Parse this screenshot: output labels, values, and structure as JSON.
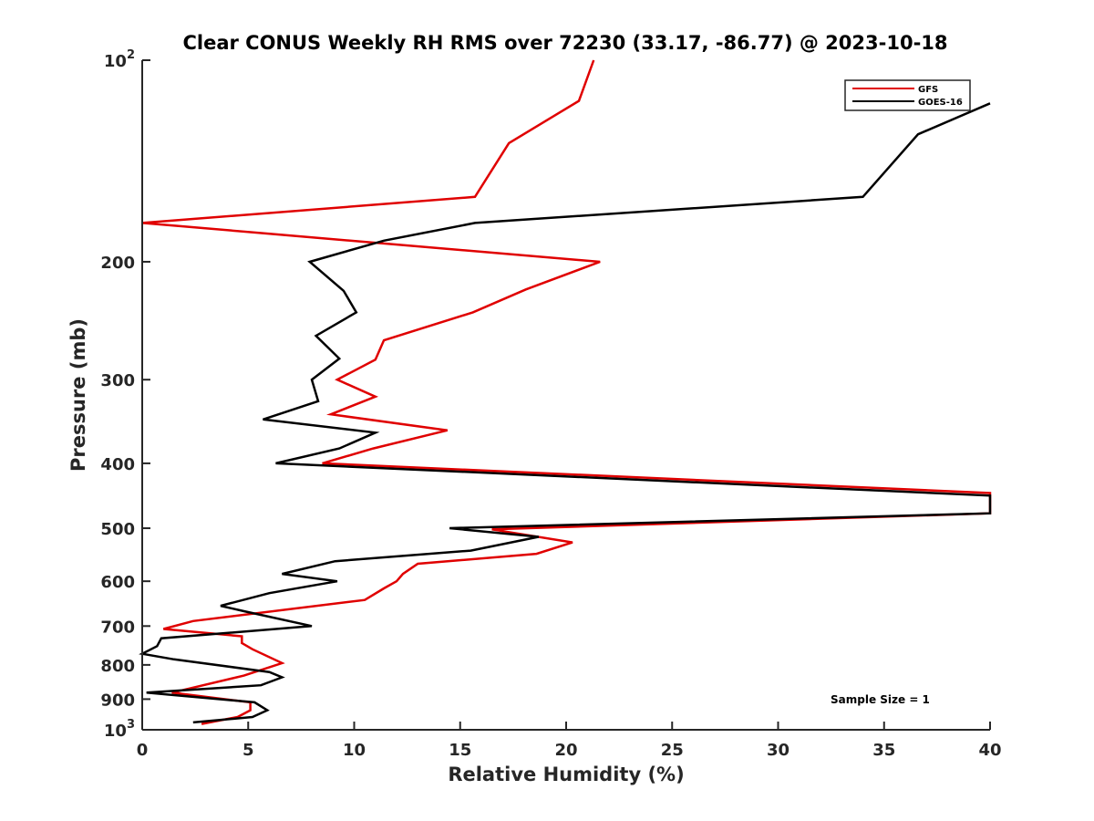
{
  "chart_data": {
    "type": "line",
    "title": "Clear CONUS Weekly RH RMS over 72230 (33.17, -86.77) @ 2023-10-18",
    "xlabel": "Relative Humidity (%)",
    "ylabel": "Pressure (mb)",
    "xlim": [
      0,
      40
    ],
    "ylim": [
      100,
      1000
    ],
    "yscale": "log",
    "y_reversed": true,
    "grid": false,
    "legend_position": "top-right",
    "x_ticks": [
      "0",
      "5",
      "10",
      "15",
      "20",
      "25",
      "30",
      "35",
      "40"
    ],
    "y_ticks": [
      {
        "p": 100,
        "base": "10",
        "exp": "2"
      },
      {
        "p": 200,
        "base": "200",
        "exp": ""
      },
      {
        "p": 300,
        "base": "300",
        "exp": ""
      },
      {
        "p": 400,
        "base": "400",
        "exp": ""
      },
      {
        "p": 500,
        "base": "500",
        "exp": ""
      },
      {
        "p": 600,
        "base": "600",
        "exp": ""
      },
      {
        "p": 700,
        "base": "700",
        "exp": ""
      },
      {
        "p": 800,
        "base": "800",
        "exp": ""
      },
      {
        "p": 900,
        "base": "900",
        "exp": ""
      },
      {
        "p": 1000,
        "base": "10",
        "exp": "3"
      }
    ],
    "annotation": "Sample Size = 1",
    "series": [
      {
        "name": "GFS",
        "color": "#e00000",
        "points": [
          [
            21.3,
            100
          ],
          [
            20.6,
            115
          ],
          [
            17.3,
            133
          ],
          [
            15.7,
            160
          ],
          [
            0.0,
            175
          ],
          [
            21.6,
            200
          ],
          [
            18.1,
            220
          ],
          [
            15.6,
            238
          ],
          [
            11.4,
            262
          ],
          [
            11.0,
            280
          ],
          [
            9.2,
            300
          ],
          [
            11.0,
            318
          ],
          [
            8.9,
            338
          ],
          [
            14.4,
            357
          ],
          [
            10.9,
            380
          ],
          [
            8.5,
            400
          ],
          [
            40.0,
            443
          ],
          [
            40.0,
            475
          ],
          [
            16.5,
            502
          ],
          [
            20.3,
            525
          ],
          [
            18.6,
            546
          ],
          [
            13.0,
            565
          ],
          [
            12.3,
            585
          ],
          [
            12.0,
            600
          ],
          [
            11.4,
            615
          ],
          [
            10.5,
            640
          ],
          [
            2.4,
            688
          ],
          [
            1.0,
            707
          ],
          [
            4.7,
            725
          ],
          [
            4.7,
            742
          ],
          [
            5.2,
            758
          ],
          [
            6.6,
            795
          ],
          [
            4.8,
            830
          ],
          [
            1.4,
            880
          ],
          [
            5.1,
            910
          ],
          [
            5.1,
            935
          ],
          [
            4.5,
            957
          ],
          [
            2.8,
            980
          ]
        ]
      },
      {
        "name": "GOES-16",
        "color": "#000000",
        "points": [
          [
            40.0,
            116
          ],
          [
            36.6,
            129
          ],
          [
            34.0,
            160
          ],
          [
            15.7,
            175
          ],
          [
            11.4,
            186
          ],
          [
            7.9,
            200
          ],
          [
            9.5,
            221
          ],
          [
            10.1,
            238
          ],
          [
            8.2,
            258
          ],
          [
            9.3,
            279
          ],
          [
            8.0,
            300
          ],
          [
            8.3,
            323
          ],
          [
            5.7,
            344
          ],
          [
            11.0,
            360
          ],
          [
            9.3,
            380
          ],
          [
            6.3,
            400
          ],
          [
            40.0,
            447
          ],
          [
            40.0,
            475
          ],
          [
            14.5,
            500
          ],
          [
            18.7,
            515
          ],
          [
            15.5,
            540
          ],
          [
            9.1,
            560
          ],
          [
            6.6,
            585
          ],
          [
            9.2,
            600
          ],
          [
            6.0,
            625
          ],
          [
            3.7,
            653
          ],
          [
            4.8,
            665
          ],
          [
            8.0,
            700
          ],
          [
            0.9,
            730
          ],
          [
            0.7,
            750
          ],
          [
            0.0,
            770
          ],
          [
            1.5,
            785
          ],
          [
            6.0,
            820
          ],
          [
            6.6,
            835
          ],
          [
            5.6,
            858
          ],
          [
            0.2,
            880
          ],
          [
            5.3,
            910
          ],
          [
            5.9,
            935
          ],
          [
            5.2,
            957
          ],
          [
            2.4,
            975
          ]
        ]
      }
    ]
  }
}
